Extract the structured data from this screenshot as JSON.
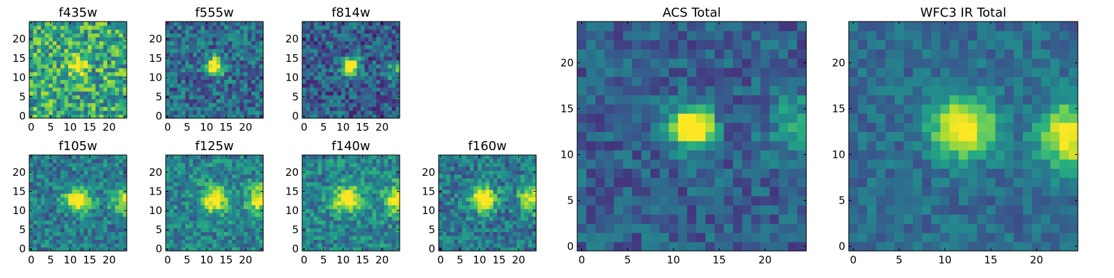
{
  "figure": {
    "background": "#ffffff",
    "colormap": "viridis",
    "colormap_stops": [
      "#440154",
      "#472c7a",
      "#3b528b",
      "#2c728e",
      "#21918c",
      "#28ae80",
      "#5ec962",
      "#addc30",
      "#fde725"
    ]
  },
  "chart_data": [
    {
      "type": "heatmap",
      "title": "f435w",
      "grid": 25,
      "xlim": [
        0,
        24
      ],
      "ylim": [
        0,
        24
      ],
      "xticks": [
        0,
        5,
        10,
        15,
        20
      ],
      "yticks": [
        0,
        5,
        10,
        15,
        20
      ],
      "source_blobs": [
        {
          "x": 12,
          "y": 13,
          "sigma": 1.4,
          "amp": 0.45
        }
      ],
      "background_level": 0.6,
      "noise_level": 0.3
    },
    {
      "type": "heatmap",
      "title": "f555w",
      "grid": 25,
      "xlim": [
        0,
        24
      ],
      "ylim": [
        0,
        24
      ],
      "xticks": [
        0,
        5,
        10,
        15,
        20
      ],
      "yticks": [
        0,
        5,
        10,
        15,
        20
      ],
      "source_blobs": [
        {
          "x": 12,
          "y": 13,
          "sigma": 1.5,
          "amp": 0.6
        }
      ],
      "background_level": 0.35,
      "noise_level": 0.22
    },
    {
      "type": "heatmap",
      "title": "f814w",
      "grid": 25,
      "xlim": [
        0,
        24
      ],
      "ylim": [
        0,
        24
      ],
      "xticks": [
        0,
        5,
        10,
        15,
        20
      ],
      "yticks": [
        0,
        5,
        10,
        15,
        20
      ],
      "source_blobs": [
        {
          "x": 12,
          "y": 13,
          "sigma": 1.5,
          "amp": 0.6
        },
        {
          "x": 24,
          "y": 12,
          "sigma": 2.0,
          "amp": 0.2
        }
      ],
      "background_level": 0.3,
      "noise_level": 0.22
    },
    {
      "type": "heatmap",
      "title": "f105w",
      "grid": 25,
      "xlim": [
        0,
        24
      ],
      "ylim": [
        0,
        24
      ],
      "xticks": [
        0,
        5,
        10,
        15,
        20
      ],
      "yticks": [
        0,
        5,
        10,
        15,
        20
      ],
      "source_blobs": [
        {
          "x": 12,
          "y": 13,
          "sigma": 2.2,
          "amp": 0.45
        },
        {
          "x": 24,
          "y": 13,
          "sigma": 2.5,
          "amp": 0.3
        }
      ],
      "background_level": 0.42,
      "noise_level": 0.2
    },
    {
      "type": "heatmap",
      "title": "f125w",
      "grid": 25,
      "xlim": [
        0,
        24
      ],
      "ylim": [
        0,
        24
      ],
      "xticks": [
        0,
        5,
        10,
        15,
        20
      ],
      "yticks": [
        0,
        5,
        10,
        15,
        20
      ],
      "source_blobs": [
        {
          "x": 12,
          "y": 13,
          "sigma": 2.2,
          "amp": 0.45
        },
        {
          "x": 24,
          "y": 13,
          "sigma": 2.5,
          "amp": 0.35
        }
      ],
      "background_level": 0.45,
      "noise_level": 0.2
    },
    {
      "type": "heatmap",
      "title": "f140w",
      "grid": 25,
      "xlim": [
        0,
        24
      ],
      "ylim": [
        0,
        24
      ],
      "xticks": [
        0,
        5,
        10,
        15,
        20
      ],
      "yticks": [
        0,
        5,
        10,
        15,
        20
      ],
      "source_blobs": [
        {
          "x": 11,
          "y": 13,
          "sigma": 2.3,
          "amp": 0.45
        },
        {
          "x": 24,
          "y": 13,
          "sigma": 2.6,
          "amp": 0.35
        }
      ],
      "background_level": 0.45,
      "noise_level": 0.2
    },
    {
      "type": "heatmap",
      "title": "f160w",
      "grid": 25,
      "xlim": [
        0,
        24
      ],
      "ylim": [
        0,
        24
      ],
      "xticks": [
        0,
        5,
        10,
        15,
        20
      ],
      "yticks": [
        0,
        5,
        10,
        15,
        20
      ],
      "source_blobs": [
        {
          "x": 11,
          "y": 13,
          "sigma": 2.3,
          "amp": 0.45
        },
        {
          "x": 24,
          "y": 13,
          "sigma": 2.6,
          "amp": 0.4
        }
      ],
      "background_level": 0.4,
      "noise_level": 0.2
    },
    {
      "type": "heatmap",
      "title": "ACS Total",
      "grid": 25,
      "xlim": [
        0,
        24
      ],
      "ylim": [
        0,
        24
      ],
      "xticks": [
        0,
        5,
        10,
        15,
        20
      ],
      "yticks": [
        0,
        5,
        10,
        15,
        20
      ],
      "source_blobs": [
        {
          "x": 12,
          "y": 13,
          "sigma": 1.6,
          "amp": 0.65
        },
        {
          "x": 24,
          "y": 13,
          "sigma": 2.5,
          "amp": 0.2
        }
      ],
      "background_level": 0.3,
      "noise_level": 0.15
    },
    {
      "type": "heatmap",
      "title": "WFC3 IR Total",
      "grid": 25,
      "xlim": [
        0,
        24
      ],
      "ylim": [
        0,
        24
      ],
      "xticks": [
        0,
        5,
        10,
        15,
        20
      ],
      "yticks": [
        0,
        5,
        10,
        15,
        20
      ],
      "source_blobs": [
        {
          "x": 12,
          "y": 13,
          "sigma": 2.3,
          "amp": 0.5
        },
        {
          "x": 24,
          "y": 12,
          "sigma": 2.5,
          "amp": 0.45
        }
      ],
      "background_level": 0.35,
      "noise_level": 0.12
    }
  ]
}
